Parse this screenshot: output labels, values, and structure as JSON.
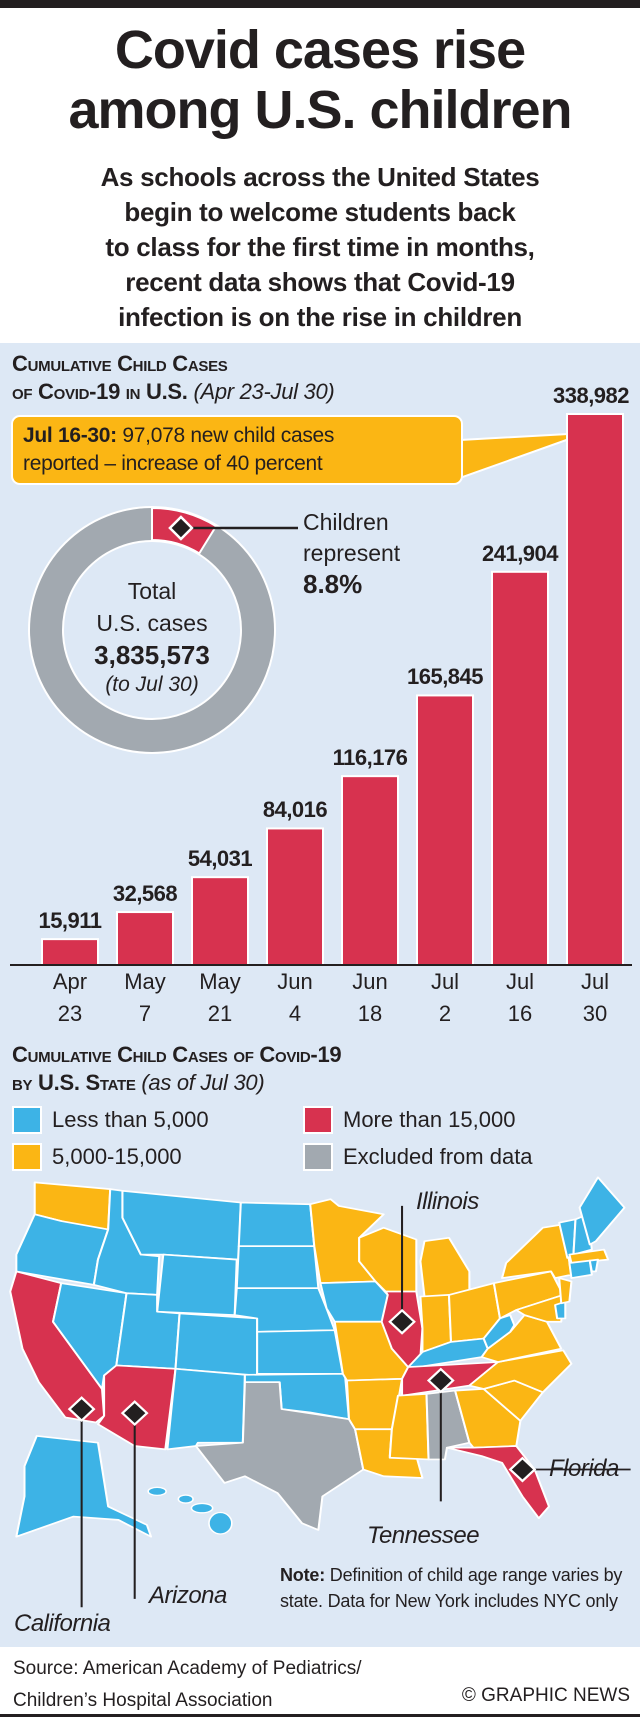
{
  "header": {
    "title_lines": [
      "Covid cases rise",
      "among U.S. children"
    ],
    "subtitle_lines": [
      "As schools across the United States",
      "begin to welcome students back",
      "to class for the first time in months,",
      "recent data shows that Covid-19",
      "infection is on the rise in children"
    ]
  },
  "colors": {
    "panel": "#dde8f5",
    "bar": "#d7324f",
    "less_than_5000": "#3db3e6",
    "between_5000_15000": "#fbb614",
    "more_than_15000": "#d7324f",
    "excluded": "#a2a9b0"
  },
  "chart_data": [
    {
      "type": "bar",
      "title_line1": "Cumulative Child Cases",
      "title_line2": "of Covid-19 in U.S.",
      "title_range": "(Apr 23-Jul 30)",
      "categories": [
        [
          "Apr",
          "23"
        ],
        [
          "May",
          "7"
        ],
        [
          "May",
          "21"
        ],
        [
          "Jun",
          "4"
        ],
        [
          "Jun",
          "18"
        ],
        [
          "Jul",
          "2"
        ],
        [
          "Jul",
          "16"
        ],
        [
          "Jul",
          "30"
        ]
      ],
      "values": [
        15911,
        32568,
        54031,
        84016,
        116176,
        165845,
        241904,
        338982
      ],
      "value_labels": [
        "15,911",
        "32,568",
        "54,031",
        "84,016",
        "116,176",
        "165,845",
        "241,904",
        "338,982"
      ],
      "ylim": [
        0,
        338982
      ],
      "callout": {
        "bold": "Jul 16-30:",
        "line1": " 97,078 new child cases",
        "line2": "reported – increase of 40 percent"
      }
    },
    {
      "type": "pie",
      "donut": true,
      "slices": [
        {
          "value": 8.8
        },
        {
          "value": 91.2
        }
      ],
      "center": {
        "line1": "Total",
        "line2": "U.S. cases",
        "total": "3,835,573",
        "note": "(to Jul 30)"
      },
      "label": {
        "line1": "Children",
        "line2": "represent",
        "value": "8.8%"
      }
    }
  ],
  "map": {
    "title_line1": "Cumulative Child Cases of Covid-19",
    "title_line2": "by U.S. State",
    "title_date": "(as of Jul 30)",
    "legend": [
      {
        "label": "Less than 5,000",
        "color": "#3db3e6"
      },
      {
        "label": "5,000-15,000",
        "color": "#fbb614"
      },
      {
        "label": "More than 15,000",
        "color": "#d7324f"
      },
      {
        "label": "Excluded from data",
        "color": "#a2a9b0"
      }
    ],
    "highlighted": [
      "Illinois",
      "Florida",
      "Tennessee",
      "Arizona",
      "California"
    ],
    "note_bold": "Note:",
    "note_text": " Definition of child age range varies by state. Data for New York includes NYC only"
  },
  "footer": {
    "source_line1": "Source: American Academy of Pediatrics/",
    "source_line2": "Children’s Hospital Association",
    "credit": "© GRAPHIC NEWS"
  }
}
